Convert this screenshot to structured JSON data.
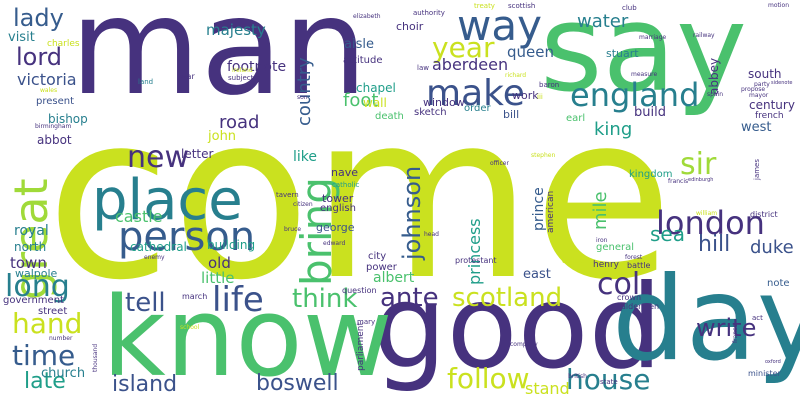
{
  "palette": {
    "purple": "#46327e",
    "indigo": "#3b528b",
    "blue": "#365c8d",
    "steel": "#277f8e",
    "teal": "#1f9e89",
    "green": "#4ac16d",
    "lime": "#a0da39",
    "yellow": "#cae11f"
  },
  "words": [
    {
      "text": "come",
      "color": "yellow"
    },
    {
      "text": "man",
      "color": "purple"
    },
    {
      "text": "say",
      "color": "green"
    },
    {
      "text": "good",
      "color": "purple"
    },
    {
      "text": "day",
      "color": "steel"
    },
    {
      "text": "know",
      "color": "green"
    },
    {
      "text": "place",
      "color": "steel"
    },
    {
      "text": "person",
      "color": "blue"
    },
    {
      "text": "make",
      "color": "indigo"
    },
    {
      "text": "way",
      "color": "blue"
    },
    {
      "text": "great",
      "color": "lime"
    },
    {
      "text": "london",
      "color": "purple"
    },
    {
      "text": "england",
      "color": "steel"
    },
    {
      "text": "year",
      "color": "yellow"
    },
    {
      "text": "life",
      "color": "indigo"
    },
    {
      "text": "new",
      "color": "purple"
    },
    {
      "text": "bring",
      "color": "green"
    },
    {
      "text": "hand",
      "color": "yellow"
    },
    {
      "text": "johnson",
      "color": "blue"
    },
    {
      "text": "scotland",
      "color": "yellow"
    },
    {
      "text": "time",
      "color": "blue"
    },
    {
      "text": "house",
      "color": "steel"
    },
    {
      "text": "long",
      "color": "steel"
    },
    {
      "text": "follow",
      "color": "yellow"
    },
    {
      "text": "sir",
      "color": "lime"
    },
    {
      "text": "think",
      "color": "green"
    },
    {
      "text": "write",
      "color": "purple"
    },
    {
      "text": "tell",
      "color": "indigo"
    },
    {
      "text": "ante",
      "color": "purple"
    },
    {
      "text": "col",
      "color": "purple"
    },
    {
      "text": "late",
      "color": "teal"
    },
    {
      "text": "island",
      "color": "indigo"
    },
    {
      "text": "boswell",
      "color": "indigo"
    },
    {
      "text": "lord",
      "color": "purple"
    },
    {
      "text": "lady",
      "color": "blue"
    },
    {
      "text": "hill",
      "color": "indigo"
    },
    {
      "text": "duke",
      "color": "indigo"
    },
    {
      "text": "sea",
      "color": "teal"
    },
    {
      "text": "king",
      "color": "teal"
    },
    {
      "text": "mile",
      "color": "green"
    },
    {
      "text": "water",
      "color": "steel"
    },
    {
      "text": "foot",
      "color": "green"
    },
    {
      "text": "country",
      "color": "blue"
    },
    {
      "text": "victoria",
      "color": "indigo"
    },
    {
      "text": "road",
      "color": "purple"
    },
    {
      "text": "majesty",
      "color": "steel"
    },
    {
      "text": "prince",
      "color": "blue"
    },
    {
      "text": "princess",
      "color": "teal"
    },
    {
      "text": "castle",
      "color": "green"
    },
    {
      "text": "stand",
      "color": "yellow"
    },
    {
      "text": "queen",
      "color": "blue"
    },
    {
      "text": "aberdeen",
      "color": "purple"
    },
    {
      "text": "royal",
      "color": "steel"
    },
    {
      "text": "town",
      "color": "purple"
    },
    {
      "text": "old",
      "color": "purple"
    },
    {
      "text": "little",
      "color": "green"
    },
    {
      "text": "albert",
      "color": "green"
    },
    {
      "text": "like",
      "color": "teal"
    },
    {
      "text": "footnote",
      "color": "purple"
    },
    {
      "text": "visit",
      "color": "steel"
    },
    {
      "text": "church",
      "color": "steel"
    },
    {
      "text": "north",
      "color": "steel"
    },
    {
      "text": "building",
      "color": "teal"
    },
    {
      "text": "cathedral",
      "color": "teal"
    },
    {
      "text": "east",
      "color": "indigo"
    },
    {
      "text": "build",
      "color": "purple"
    },
    {
      "text": "century",
      "color": "purple"
    },
    {
      "text": "south",
      "color": "purple"
    },
    {
      "text": "west",
      "color": "blue"
    },
    {
      "text": "aisle",
      "color": "blue"
    },
    {
      "text": "chapel",
      "color": "teal"
    },
    {
      "text": "wall",
      "color": "yellow"
    },
    {
      "text": "work",
      "color": "purple"
    },
    {
      "text": "bishop",
      "color": "steel"
    },
    {
      "text": "abbot",
      "color": "purple"
    },
    {
      "text": "abbey",
      "color": "purple"
    },
    {
      "text": "tower",
      "color": "purple"
    },
    {
      "text": "george",
      "color": "indigo"
    },
    {
      "text": "letter",
      "color": "purple"
    },
    {
      "text": "john",
      "color": "yellow"
    },
    {
      "text": "walpole",
      "color": "steel"
    },
    {
      "text": "nave",
      "color": "purple"
    },
    {
      "text": "choir",
      "color": "purple"
    },
    {
      "text": "stuart",
      "color": "steel"
    },
    {
      "text": "window",
      "color": "purple"
    },
    {
      "text": "note",
      "color": "blue"
    },
    {
      "text": "bill",
      "color": "indigo"
    },
    {
      "text": "present",
      "color": "indigo"
    },
    {
      "text": "government",
      "color": "purple"
    },
    {
      "text": "street",
      "color": "purple"
    },
    {
      "text": "english",
      "color": "purple"
    },
    {
      "text": "sketch",
      "color": "purple"
    },
    {
      "text": "order",
      "color": "steel"
    },
    {
      "text": "death",
      "color": "green"
    },
    {
      "text": "earl",
      "color": "green"
    },
    {
      "text": "attitude",
      "color": "purple"
    },
    {
      "text": "charles",
      "color": "yellow"
    },
    {
      "text": "city",
      "color": "purple"
    },
    {
      "text": "power",
      "color": "purple"
    },
    {
      "text": "kingdom",
      "color": "teal"
    },
    {
      "text": "general",
      "color": "green"
    },
    {
      "text": "henry",
      "color": "purple"
    },
    {
      "text": "french",
      "color": "purple"
    },
    {
      "text": "parliament",
      "color": "purple"
    },
    {
      "text": "american",
      "color": "purple"
    },
    {
      "text": "protestant",
      "color": "purple"
    },
    {
      "text": "question",
      "color": "purple"
    },
    {
      "text": "minister",
      "color": "indigo"
    },
    {
      "text": "march",
      "color": "purple"
    },
    {
      "text": "battle",
      "color": "purple"
    },
    {
      "text": "crown",
      "color": "purple"
    },
    {
      "text": "aldermen",
      "color": "purple"
    },
    {
      "text": "district",
      "color": "purple"
    },
    {
      "text": "mary",
      "color": "purple"
    },
    {
      "text": "state",
      "color": "purple"
    },
    {
      "text": "act",
      "color": "purple"
    },
    {
      "text": "catholic",
      "color": "teal"
    },
    {
      "text": "tavern",
      "color": "purple"
    },
    {
      "text": "coffee",
      "color": "yellow"
    },
    {
      "text": "war",
      "color": "purple"
    },
    {
      "text": "land",
      "color": "steel"
    },
    {
      "text": "subject",
      "color": "purple"
    },
    {
      "text": "authority",
      "color": "purple"
    },
    {
      "text": "scottish",
      "color": "purple"
    },
    {
      "text": "elizabeth",
      "color": "purple"
    },
    {
      "text": "law",
      "color": "purple"
    },
    {
      "text": "baron",
      "color": "purple"
    },
    {
      "text": "treaty",
      "color": "yellow"
    },
    {
      "text": "club",
      "color": "purple"
    },
    {
      "text": "motion",
      "color": "purple"
    },
    {
      "text": "marriage",
      "color": "purple"
    },
    {
      "text": "railway",
      "color": "purple"
    },
    {
      "text": "measure",
      "color": "purple"
    },
    {
      "text": "party",
      "color": "purple"
    },
    {
      "text": "propose",
      "color": "purple"
    },
    {
      "text": "mayor",
      "color": "purple"
    },
    {
      "text": "spain",
      "color": "purple"
    },
    {
      "text": "sidenote",
      "color": "purple"
    },
    {
      "text": "son",
      "color": "purple"
    },
    {
      "text": "wales",
      "color": "yellow"
    },
    {
      "text": "birmingham",
      "color": "purple"
    },
    {
      "text": "richard",
      "color": "yellow"
    },
    {
      "text": "ireland",
      "color": "yellow"
    },
    {
      "text": "officer",
      "color": "purple"
    },
    {
      "text": "stephen",
      "color": "yellow"
    },
    {
      "text": "citizen",
      "color": "purple"
    },
    {
      "text": "francis",
      "color": "purple"
    },
    {
      "text": "edinburgh",
      "color": "purple"
    },
    {
      "text": "william",
      "color": "yellow"
    },
    {
      "text": "iron",
      "color": "purple"
    },
    {
      "text": "forest",
      "color": "purple"
    },
    {
      "text": "france",
      "color": "purple"
    },
    {
      "text": "edward",
      "color": "purple"
    },
    {
      "text": "head",
      "color": "purple"
    },
    {
      "text": "bruce",
      "color": "purple"
    },
    {
      "text": "enemy",
      "color": "purple"
    },
    {
      "text": "thousand",
      "color": "purple"
    },
    {
      "text": "number",
      "color": "purple"
    },
    {
      "text": "company",
      "color": "purple"
    },
    {
      "text": "british",
      "color": "purple"
    },
    {
      "text": "school",
      "color": "yellow"
    },
    {
      "text": "james",
      "color": "purple"
    },
    {
      "text": "iii",
      "color": "yellow"
    },
    {
      "text": "oxford",
      "color": "purple"
    },
    {
      "text": "lit",
      "color": "purple"
    }
  ]
}
